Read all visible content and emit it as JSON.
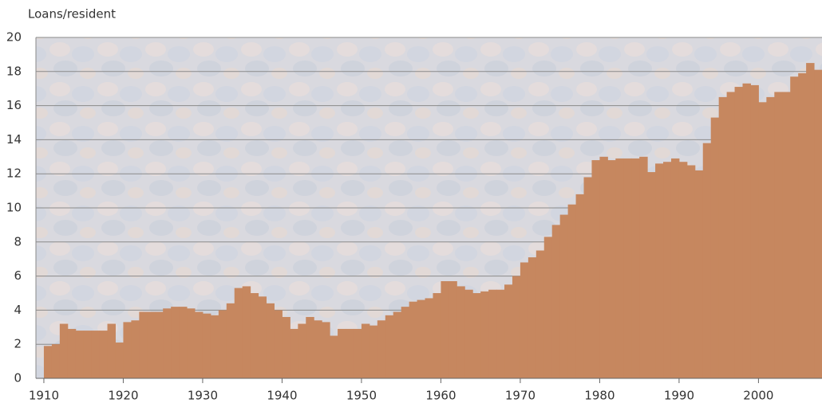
{
  "chart_data": {
    "type": "step-area",
    "y_label": "Loans/resident",
    "color": "#c6875f",
    "x": [
      1910,
      1911,
      1912,
      1913,
      1914,
      1915,
      1916,
      1917,
      1918,
      1919,
      1920,
      1921,
      1922,
      1923,
      1924,
      1925,
      1926,
      1927,
      1928,
      1929,
      1930,
      1931,
      1932,
      1933,
      1934,
      1935,
      1936,
      1937,
      1938,
      1939,
      1940,
      1941,
      1942,
      1943,
      1944,
      1945,
      1946,
      1947,
      1948,
      1949,
      1950,
      1951,
      1952,
      1953,
      1954,
      1955,
      1956,
      1957,
      1958,
      1959,
      1960,
      1961,
      1962,
      1963,
      1964,
      1965,
      1966,
      1967,
      1968,
      1969,
      1970,
      1971,
      1972,
      1973,
      1974,
      1975,
      1976,
      1977,
      1978,
      1979,
      1980,
      1981,
      1982,
      1983,
      1984,
      1985,
      1986,
      1987,
      1988,
      1989,
      1990,
      1991,
      1992,
      1993,
      1994,
      1995,
      1996,
      1997,
      1998,
      1999,
      2000,
      2001,
      2002,
      2003,
      2004,
      2005,
      2006,
      2007
    ],
    "values": [
      1.9,
      2.0,
      3.2,
      2.9,
      2.8,
      2.8,
      2.8,
      2.8,
      3.2,
      2.1,
      3.3,
      3.4,
      3.9,
      3.9,
      3.9,
      4.1,
      4.2,
      4.2,
      4.1,
      3.9,
      3.8,
      3.7,
      4.0,
      4.4,
      5.3,
      5.4,
      5.0,
      4.8,
      4.4,
      4.0,
      3.6,
      2.9,
      3.2,
      3.6,
      3.4,
      3.3,
      2.5,
      2.9,
      2.9,
      2.9,
      3.2,
      3.1,
      3.4,
      3.7,
      3.9,
      4.2,
      4.5,
      4.6,
      4.7,
      5.0,
      5.7,
      5.7,
      5.4,
      5.2,
      5.0,
      5.1,
      5.2,
      5.2,
      5.5,
      6.0,
      6.8,
      7.1,
      7.5,
      8.3,
      9.0,
      9.6,
      10.2,
      10.8,
      11.8,
      12.8,
      13.0,
      12.8,
      12.9,
      12.9,
      12.9,
      13.0,
      12.1,
      12.6,
      12.7,
      12.9,
      12.7,
      12.5,
      12.2,
      13.8,
      15.3,
      16.5,
      16.8,
      17.1,
      17.3,
      17.2,
      16.2,
      16.5,
      16.8,
      16.8,
      17.7,
      17.9,
      18.5,
      18.1
    ],
    "xlim": [
      1909,
      2008
    ],
    "xticks": [
      1910,
      1920,
      1930,
      1940,
      1950,
      1960,
      1970,
      1980,
      1990,
      2000
    ],
    "ylim": [
      0,
      20
    ],
    "yticks": [
      0,
      2,
      4,
      6,
      8,
      10,
      12,
      14,
      16,
      18,
      20
    ],
    "grid": true
  }
}
